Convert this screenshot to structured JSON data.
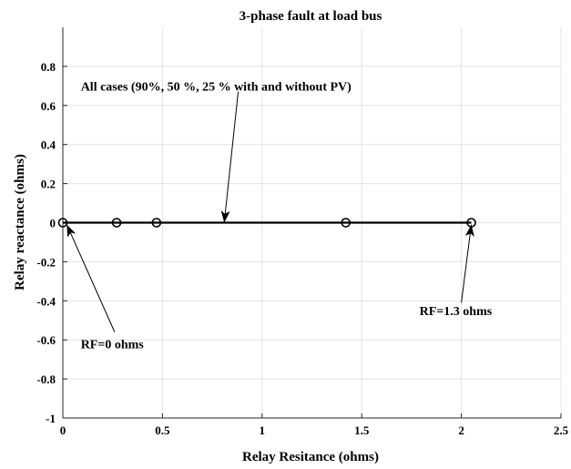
{
  "chart_data": {
    "type": "line",
    "title": "3-phase fault at load bus",
    "xlabel": "Relay Resitance (ohms)",
    "ylabel": "Relay reactance (ohms)",
    "xlim": [
      0,
      2.5
    ],
    "ylim": [
      -1,
      1
    ],
    "xticks": [
      0,
      0.5,
      1,
      1.5,
      2,
      2.5
    ],
    "xtick_labels": [
      "0",
      "0.5",
      "1",
      "1.5",
      "2",
      "2.5"
    ],
    "yticks": [
      -1,
      -0.8,
      -0.6,
      -0.4,
      -0.2,
      0,
      0.2,
      0.4,
      0.6,
      0.8
    ],
    "ytick_labels": [
      "-1",
      "-0.8",
      "-0.6",
      "-0.4",
      "-0.2",
      "0",
      "0.2",
      "0.4",
      "0.6",
      "0.8"
    ],
    "grid": true,
    "series": [
      {
        "x": [
          0,
          0.27,
          0.47,
          1.42,
          2.05
        ],
        "y": [
          0,
          0,
          0,
          0,
          0
        ],
        "marker": "circle",
        "color": "#000000"
      }
    ],
    "annotations": [
      {
        "text": "All cases (90%, 50 %, 25 % with and without PV)",
        "target": [
          0.81,
          0
        ],
        "text_at": [
          0.09,
          0.7
        ],
        "tail": [
          0.88,
          0.67
        ]
      },
      {
        "text": "RF=0 ohms",
        "target": [
          0.02,
          -0.01
        ],
        "text_at": [
          0.09,
          -0.62
        ],
        "tail": [
          0.26,
          -0.56
        ]
      },
      {
        "text": "RF=1.3 ohms",
        "target": [
          2.05,
          -0.01
        ],
        "text_at": [
          1.79,
          -0.45
        ],
        "tail": [
          2.0,
          -0.41
        ]
      }
    ]
  }
}
